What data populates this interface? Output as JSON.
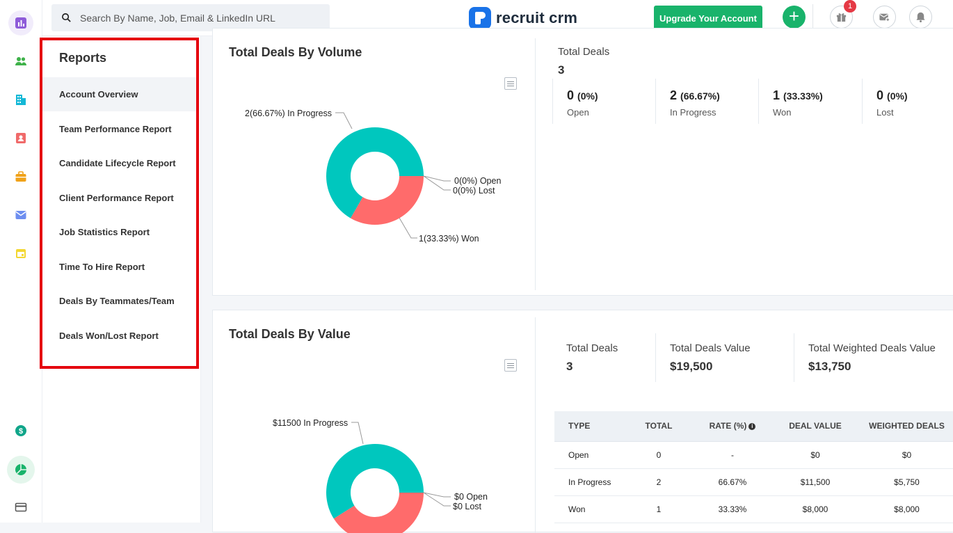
{
  "search": {
    "placeholder": "Search By Name, Job, Email & LinkedIn URL"
  },
  "brand": {
    "name": "recruit crm"
  },
  "header": {
    "upgrade_label": "Upgrade Your Account",
    "plus_label": "+",
    "notification_count": "1"
  },
  "colors": {
    "teal": "#00c7be",
    "coral": "#ff6b6b",
    "green": "#19b36b",
    "red_outline": "#e5000d"
  },
  "rail_icons": [
    "reports-icon",
    "people-icon",
    "building-icon",
    "contact-card-icon",
    "briefcase-icon",
    "mail-icon",
    "calendar-icon",
    "dollar-icon",
    "pie-chart-icon",
    "credit-card-icon"
  ],
  "reports": {
    "title": "Reports",
    "items": [
      {
        "label": "Account Overview"
      },
      {
        "label": "Team Performance Report"
      },
      {
        "label": "Candidate Lifecycle Report"
      },
      {
        "label": "Client Performance Report"
      },
      {
        "label": "Job Statistics Report"
      },
      {
        "label": "Time To Hire Report"
      },
      {
        "label": "Deals By Teammates/Team"
      },
      {
        "label": "Deals Won/Lost Report"
      }
    ]
  },
  "volume": {
    "title": "Total Deals By Volume",
    "total_label": "Total Deals",
    "total_value": "3",
    "stats": [
      {
        "value": "0",
        "pct": "(0%)",
        "label": "Open"
      },
      {
        "value": "2",
        "pct": "(66.67%)",
        "label": "In Progress"
      },
      {
        "value": "1",
        "pct": "(33.33%)",
        "label": "Won"
      },
      {
        "value": "0",
        "pct": "(0%)",
        "label": "Lost"
      }
    ],
    "labels": {
      "in_progress": "2(66.67%) In Progress",
      "open": "0(0%) Open",
      "lost": "0(0%) Lost",
      "won": "1(33.33%) Won"
    }
  },
  "value": {
    "title": "Total Deals By Value",
    "total_deals_label": "Total Deals",
    "total_deals_value": "3",
    "total_value_label": "Total Deals Value",
    "total_value_value": "$19,500",
    "weighted_label": "Total Weighted Deals Value",
    "weighted_value": "$13,750",
    "labels": {
      "in_progress": "$11500 In Progress",
      "open": "$0 Open",
      "lost": "$0 Lost"
    },
    "table": {
      "headers": [
        "TYPE",
        "TOTAL",
        "RATE (%)",
        "DEAL VALUE",
        "WEIGHTED DEALS"
      ],
      "rows": [
        [
          "Open",
          "0",
          "-",
          "$0",
          "$0"
        ],
        [
          "In Progress",
          "2",
          "66.67%",
          "$11,500",
          "$5,750"
        ],
        [
          "Won",
          "1",
          "33.33%",
          "$8,000",
          "$8,000"
        ]
      ]
    }
  },
  "chart_data": [
    {
      "type": "pie",
      "title": "Total Deals By Volume",
      "categories": [
        "In Progress",
        "Open",
        "Lost",
        "Won"
      ],
      "values": [
        2,
        0,
        0,
        1
      ]
    },
    {
      "type": "pie",
      "title": "Total Deals By Value",
      "categories": [
        "In Progress",
        "Open",
        "Lost",
        "Won"
      ],
      "values": [
        11500,
        0,
        0,
        8000
      ]
    }
  ]
}
